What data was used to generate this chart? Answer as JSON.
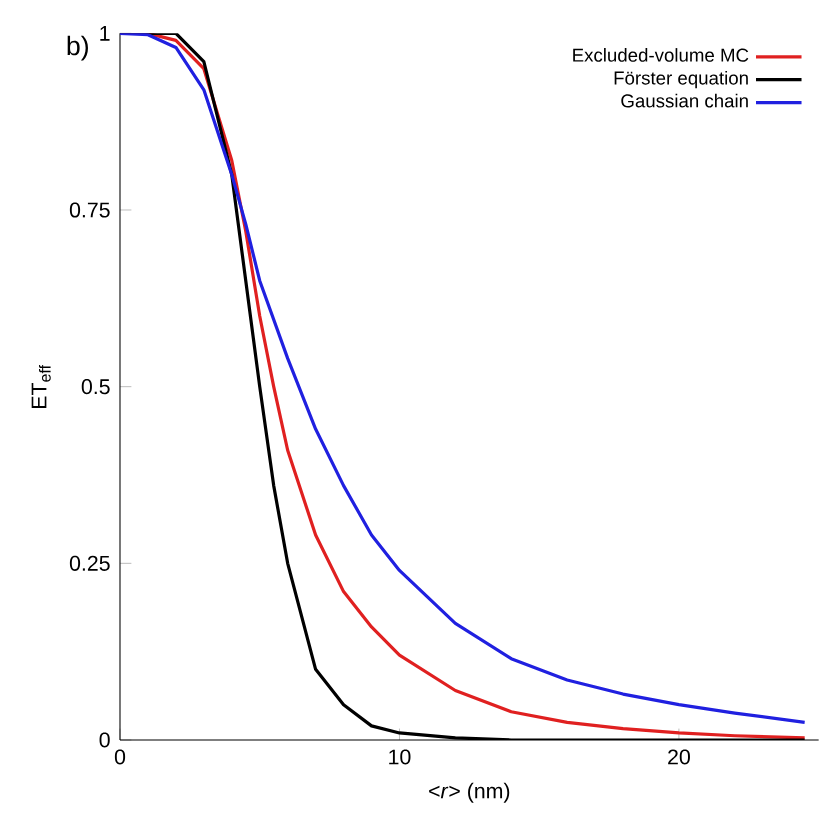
{
  "chart_data": {
    "type": "line",
    "xlabel": "<*r*> (nm)",
    "ylabel": "ET$_{eff}$",
    "annotations": [
      "b)"
    ],
    "xlim": [
      0,
      25
    ],
    "ylim": [
      0,
      1
    ],
    "xticks": [
      0,
      10,
      20
    ],
    "yticks": [
      0,
      0.25,
      0.5,
      0.75,
      1
    ],
    "legend": "top right",
    "grid": false,
    "marker": "none",
    "line_style": "solid",
    "series": [
      {
        "name": "Excluded-volume MC",
        "color": "#e02020",
        "x": [
          0,
          1,
          2,
          3,
          4,
          4.5,
          5,
          5.5,
          6,
          7,
          8,
          9,
          10,
          12,
          14,
          16,
          18,
          20,
          22,
          24.5
        ],
        "values": [
          1,
          1,
          0.99,
          0.95,
          0.82,
          0.72,
          0.6,
          0.5,
          0.41,
          0.29,
          0.21,
          0.16,
          0.12,
          0.07,
          0.04,
          0.025,
          0.016,
          0.01,
          0.006,
          0.003
        ]
      },
      {
        "name": "Förster equation",
        "color": "#000000",
        "x": [
          0,
          1,
          2,
          3,
          4,
          4.5,
          5,
          5.5,
          6,
          7,
          8,
          9,
          10,
          12,
          14,
          24.5
        ],
        "values": [
          1,
          1,
          1,
          0.96,
          0.8,
          0.65,
          0.5,
          0.36,
          0.25,
          0.1,
          0.05,
          0.02,
          0.01,
          0.003,
          0,
          0
        ]
      },
      {
        "name": "Gaussian chain",
        "color": "#2020e0",
        "x": [
          0,
          1,
          2,
          3,
          4,
          4.5,
          5,
          6,
          7,
          8,
          9,
          10,
          12,
          14,
          16,
          18,
          20,
          22,
          24.5
        ],
        "values": [
          1,
          0.998,
          0.98,
          0.92,
          0.8,
          0.73,
          0.65,
          0.54,
          0.44,
          0.36,
          0.29,
          0.24,
          0.165,
          0.115,
          0.085,
          0.065,
          0.05,
          0.038,
          0.025
        ]
      }
    ]
  }
}
